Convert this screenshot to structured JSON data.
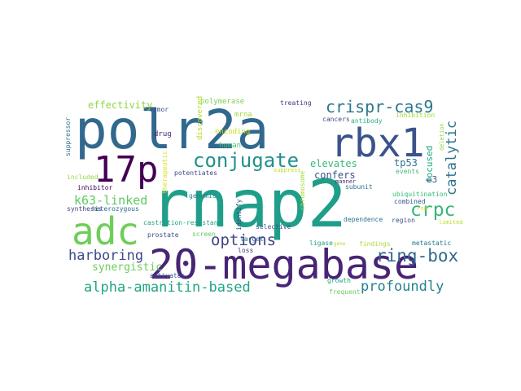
{
  "words": [
    {
      "text": "polr2a",
      "color": "#31688e"
    },
    {
      "text": "rnap2",
      "color": "#1f9e89"
    },
    {
      "text": "20-megabase",
      "color": "#482475"
    },
    {
      "text": "rbx1",
      "color": "#3b528b"
    },
    {
      "text": "adc",
      "color": "#6ece58"
    },
    {
      "text": "17p",
      "color": "#440154"
    },
    {
      "text": "conjugate",
      "color": "#21918c"
    },
    {
      "text": "crispr-cas9",
      "color": "#2a788e"
    },
    {
      "text": "crpc",
      "color": "#35b779"
    },
    {
      "text": "ring-box",
      "color": "#31688e"
    },
    {
      "text": "options",
      "color": "#414487"
    },
    {
      "text": "harboring",
      "color": "#3e4a89"
    },
    {
      "text": "alpha-amanitin-based",
      "color": "#21a585"
    },
    {
      "text": "profoundly",
      "color": "#26828e"
    },
    {
      "text": "catalytic",
      "color": "#2c728e"
    },
    {
      "text": "k63-linked",
      "color": "#5ec962"
    },
    {
      "text": "synergistic",
      "color": "#6ccd5a"
    },
    {
      "text": "effectivity",
      "color": "#8fd744"
    },
    {
      "text": "elevates",
      "color": "#37b878"
    },
    {
      "text": "confers",
      "color": "#3b528b"
    },
    {
      "text": "focused",
      "color": "#22a884"
    },
    {
      "text": "tp53",
      "color": "#2c728e"
    },
    {
      "text": "e3",
      "color": "#3a548c"
    },
    {
      "text": "polymerase",
      "color": "#7ad151"
    },
    {
      "text": "discovered",
      "color": "#b5de2b"
    },
    {
      "text": "mrna",
      "color": "#a0da39"
    },
    {
      "text": "encoding",
      "color": "#c8e020"
    },
    {
      "text": "human",
      "color": "#4ac16d"
    },
    {
      "text": "tumor",
      "color": "#3b528b"
    },
    {
      "text": "drug",
      "color": "#482878"
    },
    {
      "text": "treating",
      "color": "#46327e"
    },
    {
      "text": "cancers",
      "color": "#3e4989"
    },
    {
      "text": "antibody",
      "color": "#2db27d"
    },
    {
      "text": "inhibition",
      "color": "#a2da37"
    },
    {
      "text": "suppressor",
      "color": "#2e6f8e"
    },
    {
      "text": "therapeutic",
      "color": "#d8e219"
    },
    {
      "text": "potentiates",
      "color": "#3f4889"
    },
    {
      "text": "suppress",
      "color": "#c2df23"
    },
    {
      "text": "included",
      "color": "#95d840"
    },
    {
      "text": "inhibitor",
      "color": "#440154"
    },
    {
      "text": "synthesis",
      "color": "#414487"
    },
    {
      "text": "heterozygous",
      "color": "#31688e"
    },
    {
      "text": "genomic",
      "color": "#26828e"
    },
    {
      "text": "screen",
      "color": "#5ec962"
    },
    {
      "text": "identify",
      "color": "#3b528b"
    },
    {
      "text": "chromosome",
      "color": "#a5db36"
    },
    {
      "text": "subunit",
      "color": "#2a788e"
    },
    {
      "text": "ubiquitination",
      "color": "#35b779"
    },
    {
      "text": "deletion",
      "color": "#8fd744"
    },
    {
      "text": "events",
      "color": "#3fbc73"
    },
    {
      "text": "combined",
      "color": "#39568c"
    },
    {
      "text": "dependence",
      "color": "#2c728e"
    },
    {
      "text": "region",
      "color": "#3b528b"
    },
    {
      "text": "limited",
      "color": "#b8de29"
    },
    {
      "text": "castration-resistant",
      "color": "#20a386"
    },
    {
      "text": "prostate",
      "color": "#3e4a89"
    },
    {
      "text": "target",
      "color": "#2e6e8e"
    },
    {
      "text": "selective",
      "color": "#3b528b"
    },
    {
      "text": "loss",
      "color": "#443983"
    },
    {
      "text": "ligase",
      "color": "#1f9f88"
    },
    {
      "text": "findings",
      "color": "#a8db34"
    },
    {
      "text": "metastatic",
      "color": "#2a788e"
    },
    {
      "text": "growth",
      "color": "#22a785"
    },
    {
      "text": "frequent",
      "color": "#6ccd5a"
    },
    {
      "text": "activates",
      "color": "#3b528b"
    },
    {
      "text": "manner",
      "color": "#482475"
    },
    {
      "text": "rna",
      "color": "#cde11d"
    },
    {
      "text": "gene",
      "color": "#addc30"
    }
  ]
}
